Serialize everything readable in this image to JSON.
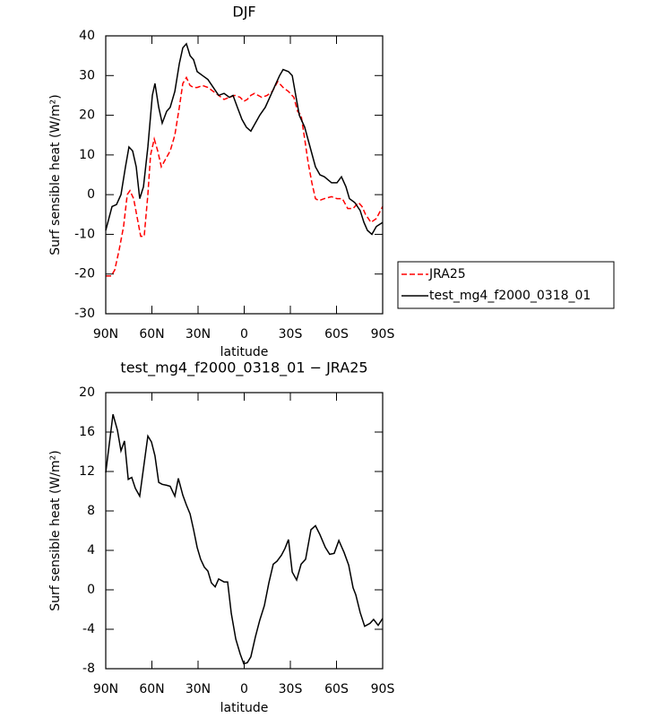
{
  "chart_data": [
    {
      "type": "line",
      "title": "DJF",
      "xlabel": "latitude",
      "ylabel": "Surf sensible heat (W/m²)",
      "xlim": [
        -90,
        90
      ],
      "ylim": [
        -30,
        40
      ],
      "xticks": [
        {
          "value": -90,
          "label": "90N"
        },
        {
          "value": -60,
          "label": "60N"
        },
        {
          "value": -30,
          "label": "30N"
        },
        0,
        {
          "value": 30,
          "label": "30S"
        },
        {
          "value": 60,
          "label": "60S"
        },
        {
          "value": 90,
          "label": "90S"
        }
      ],
      "yticks": [
        -30,
        -20,
        -10,
        0,
        10,
        20,
        30,
        40
      ],
      "legend": "right",
      "series": [
        {
          "name": "JRA25",
          "color": "#ff0000",
          "line_style": "dashed",
          "x": [
            -90,
            -86.5,
            -84.2,
            -81.3,
            -78.4,
            -76,
            -74.3,
            -71.9,
            -69,
            -67.3,
            -65,
            -62.6,
            -60.9,
            -58.5,
            -56.2,
            -53.9,
            -51,
            -48.1,
            -45.1,
            -42.2,
            -39.9,
            -37.6,
            -35.2,
            -32.9,
            -30.6,
            -27.1,
            -23.6,
            -20.1,
            -16.6,
            -13.1,
            -9.6,
            -6.1,
            -2.6,
            -0.3,
            2,
            4.3,
            6.7,
            9,
            11.4,
            14.9,
            18.3,
            21.8,
            25.3,
            28.8,
            32.3,
            34.7,
            37,
            39.3,
            41.6,
            44,
            46.3,
            48.6,
            52.1,
            56.8,
            60.3,
            63.8,
            67.3,
            70.8,
            74.3,
            76.6,
            78.9,
            82.4,
            85.9,
            90
          ],
          "values": [
            -20.5,
            -20.5,
            -19,
            -14,
            -8,
            0,
            1,
            -1,
            -7,
            -10.5,
            -10.5,
            0,
            10,
            14,
            11,
            7,
            9,
            11,
            15,
            22,
            28,
            29.5,
            27.5,
            27,
            27,
            27.5,
            27,
            26,
            25,
            24,
            24.5,
            25,
            24.5,
            23.5,
            24,
            25,
            25.5,
            25,
            24.5,
            25,
            26,
            28.5,
            27,
            26,
            24.5,
            21,
            20,
            14,
            8,
            3,
            -1,
            -1.5,
            -1,
            -0.5,
            -1,
            -1,
            -3.5,
            -3.5,
            -2,
            -3,
            -5,
            -7,
            -6,
            -3
          ]
        },
        {
          "name": "test_mg4_f2000_0318_01",
          "color": "#000000",
          "line_style": "solid",
          "x": [
            -90,
            -85.9,
            -83,
            -80.1,
            -77.2,
            -74.9,
            -72.5,
            -70.2,
            -67.9,
            -65.5,
            -62.6,
            -59.7,
            -58,
            -55.6,
            -53.3,
            -50.4,
            -48.1,
            -45.1,
            -42.2,
            -39.9,
            -37.6,
            -35.2,
            -32.9,
            -30.6,
            -27.1,
            -23.6,
            -20.1,
            -16.6,
            -13.1,
            -9.6,
            -7.3,
            -4.4,
            -1.5,
            1.4,
            4.3,
            7.2,
            10.1,
            13.7,
            17.2,
            20.7,
            23,
            25.3,
            28.8,
            31.2,
            33.5,
            35.8,
            39.3,
            42.8,
            46.3,
            49.2,
            52.1,
            56.8,
            60.3,
            63.2,
            66.1,
            68.4,
            71.9,
            75.4,
            77.8,
            80.1,
            83,
            85.9,
            90
          ],
          "values": [
            -9,
            -3,
            -2.5,
            0,
            7,
            12,
            11,
            7,
            -1,
            2,
            12,
            25,
            28,
            22,
            18,
            21,
            22,
            26,
            33,
            37,
            38,
            35,
            34,
            31,
            30,
            29,
            27,
            25,
            25.5,
            24.5,
            25,
            22,
            19,
            17,
            16,
            18,
            20,
            22,
            25,
            28,
            30,
            31.5,
            31,
            30,
            25,
            20,
            17,
            12,
            7,
            5,
            4.5,
            3,
            3,
            4.5,
            2,
            -1,
            -2,
            -4,
            -7,
            -9,
            -10,
            -8,
            -7
          ]
        }
      ]
    },
    {
      "type": "line",
      "title": "test_mg4_f2000_0318_01 − JRA25",
      "xlabel": "latitude",
      "ylabel": "Surf sensible heat (W/m²)",
      "xlim": [
        -90,
        90
      ],
      "ylim": [
        -8,
        20
      ],
      "xticks": [
        {
          "value": -90,
          "label": "90N"
        },
        {
          "value": -60,
          "label": "60N"
        },
        {
          "value": -30,
          "label": "30N"
        },
        0,
        {
          "value": 30,
          "label": "30S"
        },
        {
          "value": 60,
          "label": "60S"
        },
        {
          "value": 90,
          "label": "90S"
        }
      ],
      "yticks": [
        -8,
        -4,
        0,
        4,
        8,
        12,
        16,
        20
      ],
      "series": [
        {
          "color": "#000000",
          "line_style": "solid",
          "x": [
            -90,
            -85.3,
            -82.4,
            -80.1,
            -77.8,
            -75.4,
            -73.1,
            -70.8,
            -67.9,
            -62.6,
            -60.3,
            -58,
            -55.6,
            -53.3,
            -50.4,
            -48.1,
            -45.1,
            -42.8,
            -39.9,
            -37.6,
            -35.2,
            -32.9,
            -30.6,
            -28.3,
            -25.9,
            -23.6,
            -21.3,
            -18.9,
            -16.6,
            -13.1,
            -10.8,
            -8.4,
            -5.5,
            -2.6,
            -0.3,
            2,
            4.3,
            7.2,
            10.1,
            13.1,
            16,
            18.9,
            21.3,
            24.2,
            26.5,
            28.8,
            31.2,
            34.1,
            37,
            39.9,
            43.4,
            46.3,
            49.2,
            52.7,
            55.6,
            58.5,
            61.5,
            64.9,
            67.9,
            70.8,
            72.5,
            75.4,
            78.3,
            81.8,
            84.1,
            87.1,
            90
          ],
          "values": [
            11.9,
            17.8,
            16.2,
            14.1,
            15.1,
            11.2,
            11.4,
            10.3,
            9.5,
            15.6,
            15,
            13.6,
            10.9,
            10.7,
            10.6,
            10.5,
            9.5,
            11.3,
            9.6,
            8.6,
            7.7,
            6.1,
            4.3,
            3.1,
            2.3,
            1.9,
            0.7,
            0.3,
            1.1,
            0.8,
            0.8,
            -2.4,
            -5,
            -6.5,
            -7.5,
            -7.4,
            -6.8,
            -4.8,
            -3.1,
            -1.6,
            0.7,
            2.6,
            2.9,
            3.5,
            4.2,
            5.1,
            1.8,
            1,
            2.6,
            3.1,
            6.1,
            6.5,
            5.6,
            4.3,
            3.6,
            3.7,
            5,
            3.8,
            2.5,
            0.2,
            -0.5,
            -2.3,
            -3.7,
            -3.4,
            -3,
            -3.6,
            -2.9
          ]
        }
      ]
    }
  ]
}
